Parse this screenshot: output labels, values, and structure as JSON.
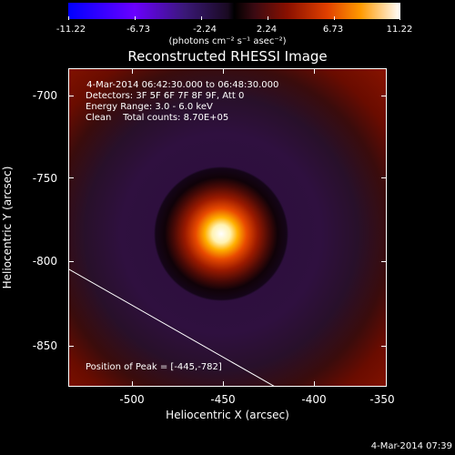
{
  "colorbar": {
    "ticks": [
      "-11.22",
      "-6.73",
      "-2.24",
      "2.24",
      "6.73",
      "11.22"
    ],
    "units": "(photons cm⁻² s⁻¹ asec⁻²)"
  },
  "title": "Reconstructed RHESSI Image",
  "info": {
    "time_range": " 4-Mar-2014 06:42:30.000 to 06:48:30.000",
    "detectors": "Detectors: 3F 5F 6F 7F 8F 9F, Att 0",
    "energy": "Energy Range: 3.0 - 6.0 keV",
    "clean": "Clean    Total counts: 8.70E+05",
    "peak": "Position of Peak = [-445,-782]"
  },
  "axes": {
    "x_ticks": [
      "-500",
      "-450",
      "-400",
      "-350"
    ],
    "y_ticks": [
      "-700",
      "-750",
      "-800",
      "-850"
    ],
    "xlabel": "Heliocentric X (arcsec)",
    "ylabel": "Heliocentric Y (arcsec)"
  },
  "footer": "4-Mar-2014 07:39",
  "colors": {
    "background": "#000000",
    "peak": "#ffffff",
    "halo": "#8a1400"
  }
}
